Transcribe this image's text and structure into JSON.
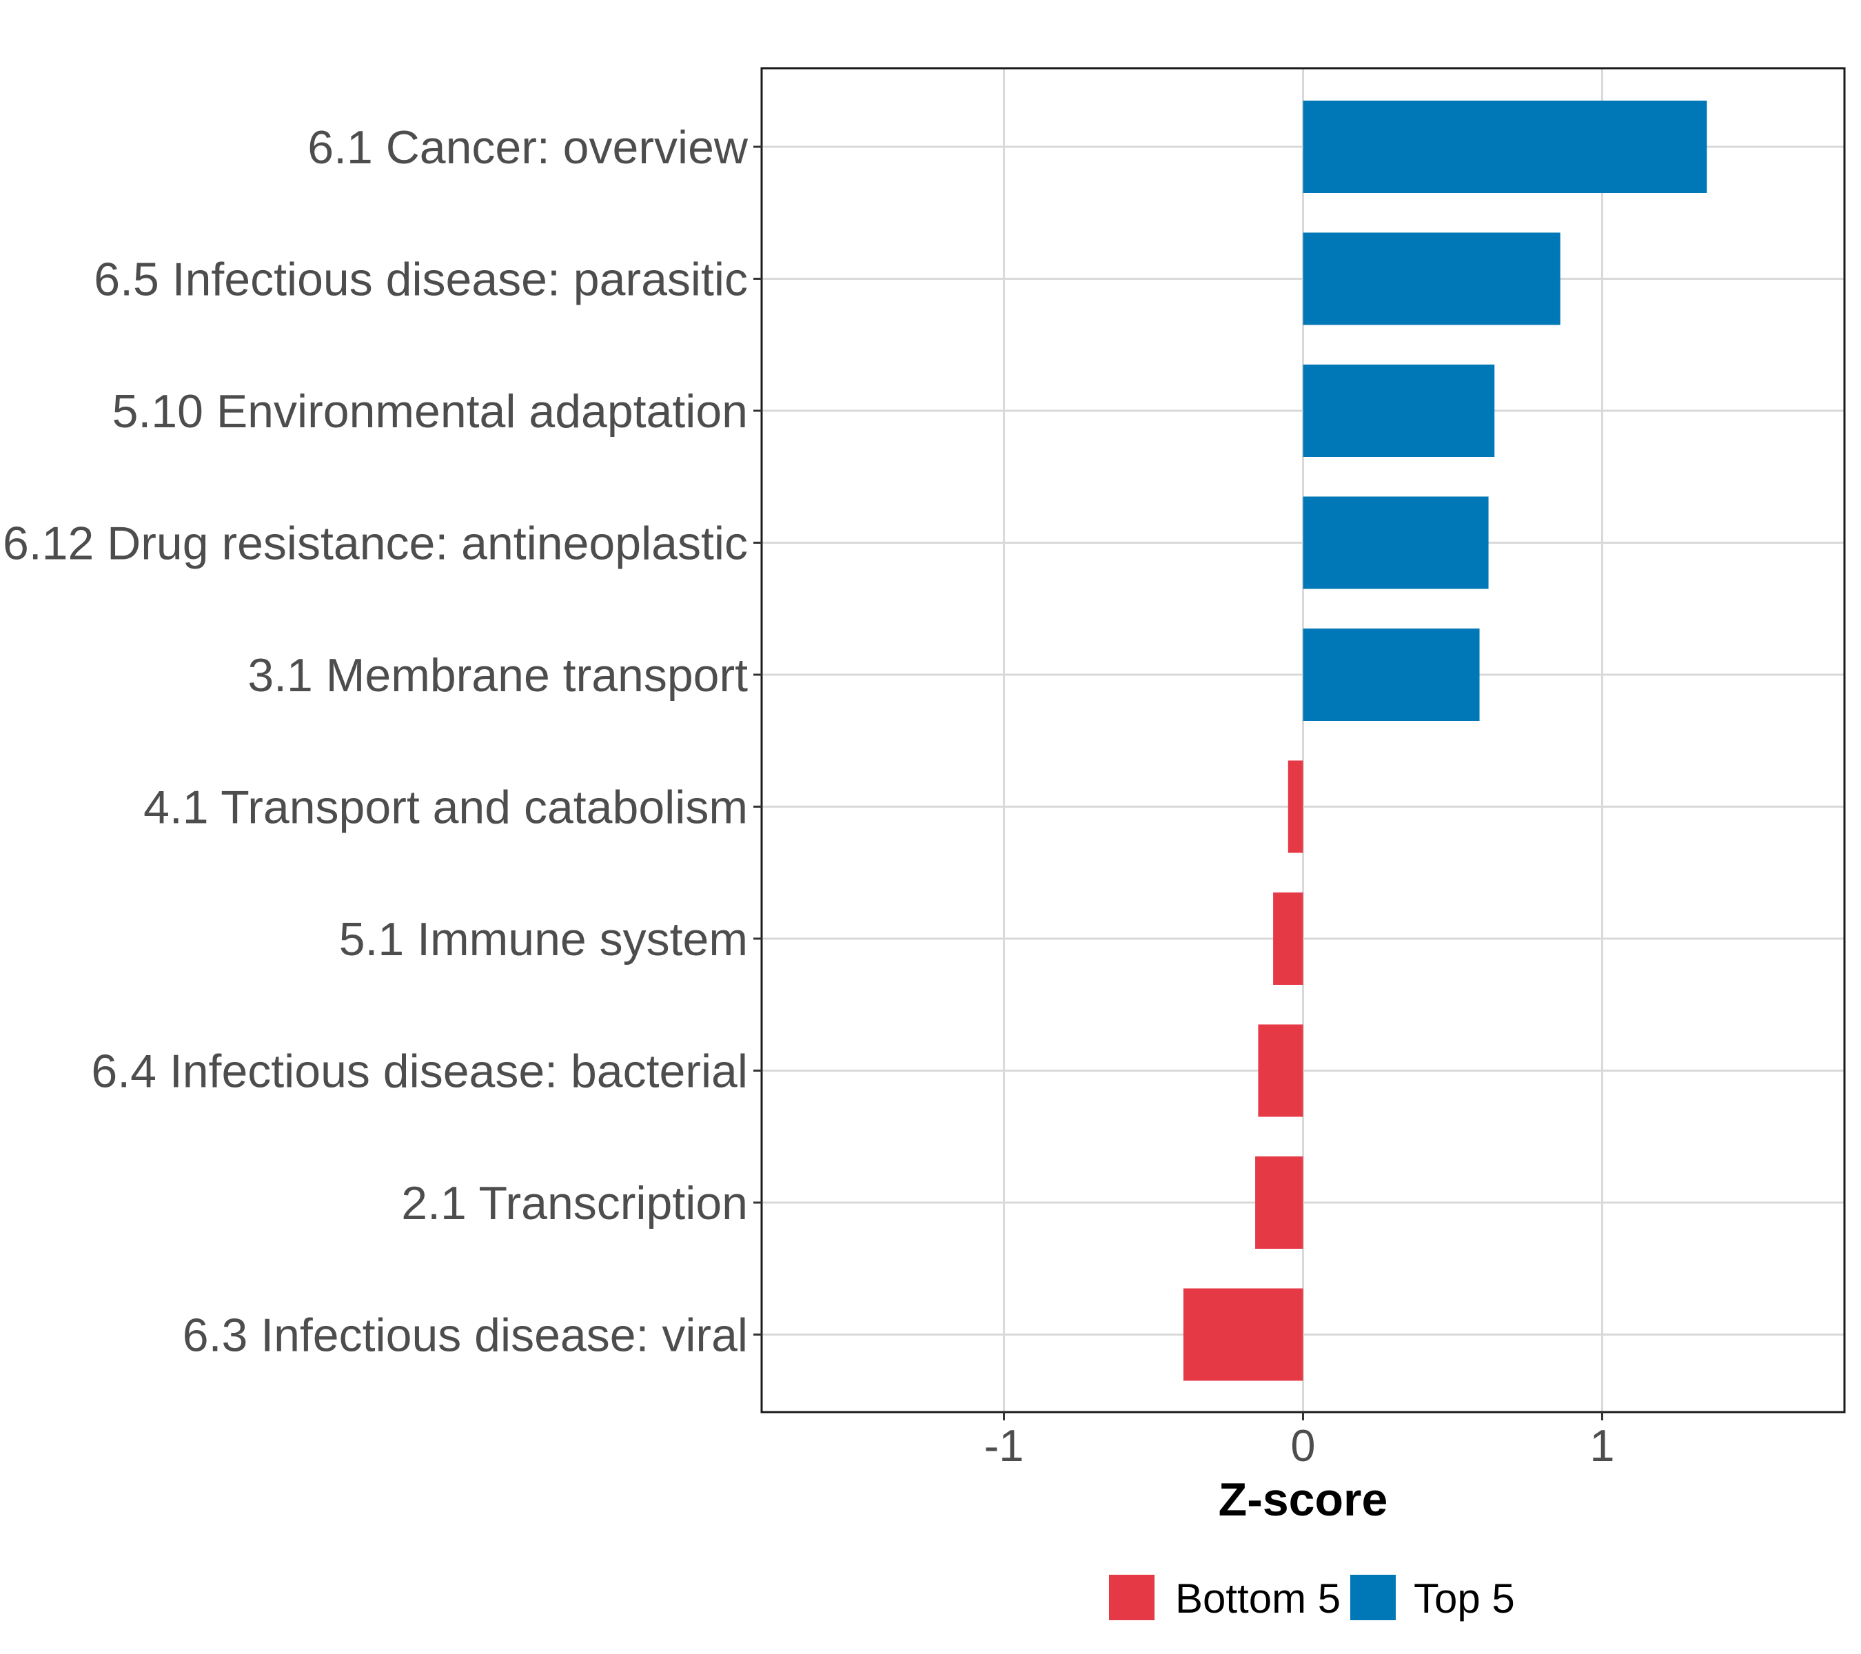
{
  "chart_data": {
    "type": "bar",
    "orientation": "horizontal",
    "title": "",
    "xlabel": "Z-score",
    "ylabel": "",
    "xlim": [
      -1.81,
      1.81
    ],
    "x_ticks": [
      -1,
      0,
      1
    ],
    "x_tick_labels": [
      "-1",
      "0",
      "1"
    ],
    "grid": true,
    "legend_position": "bottom",
    "categories": [
      "6.1 Cancer: overview",
      "6.5 Infectious disease: parasitic",
      "5.10 Environmental adaptation",
      "6.12 Drug resistance: antineoplastic",
      "3.1 Membrane transport",
      "4.1 Transport and catabolism",
      "5.1 Immune system",
      "6.4 Infectious disease: bacterial",
      "2.1 Transcription",
      "6.3 Infectious disease: viral"
    ],
    "values": [
      1.35,
      0.86,
      0.64,
      0.62,
      0.59,
      -0.05,
      -0.1,
      -0.15,
      -0.16,
      -0.4
    ],
    "groups": [
      "Top 5",
      "Top 5",
      "Top 5",
      "Top 5",
      "Top 5",
      "Bottom 5",
      "Bottom 5",
      "Bottom 5",
      "Bottom 5",
      "Bottom 5"
    ],
    "legend": [
      {
        "label": "Bottom 5",
        "color": "#E63946"
      },
      {
        "label": "Top 5",
        "color": "#0077B6"
      }
    ],
    "colors": {
      "Top 5": "#0077B6",
      "Bottom 5": "#E63946"
    }
  }
}
